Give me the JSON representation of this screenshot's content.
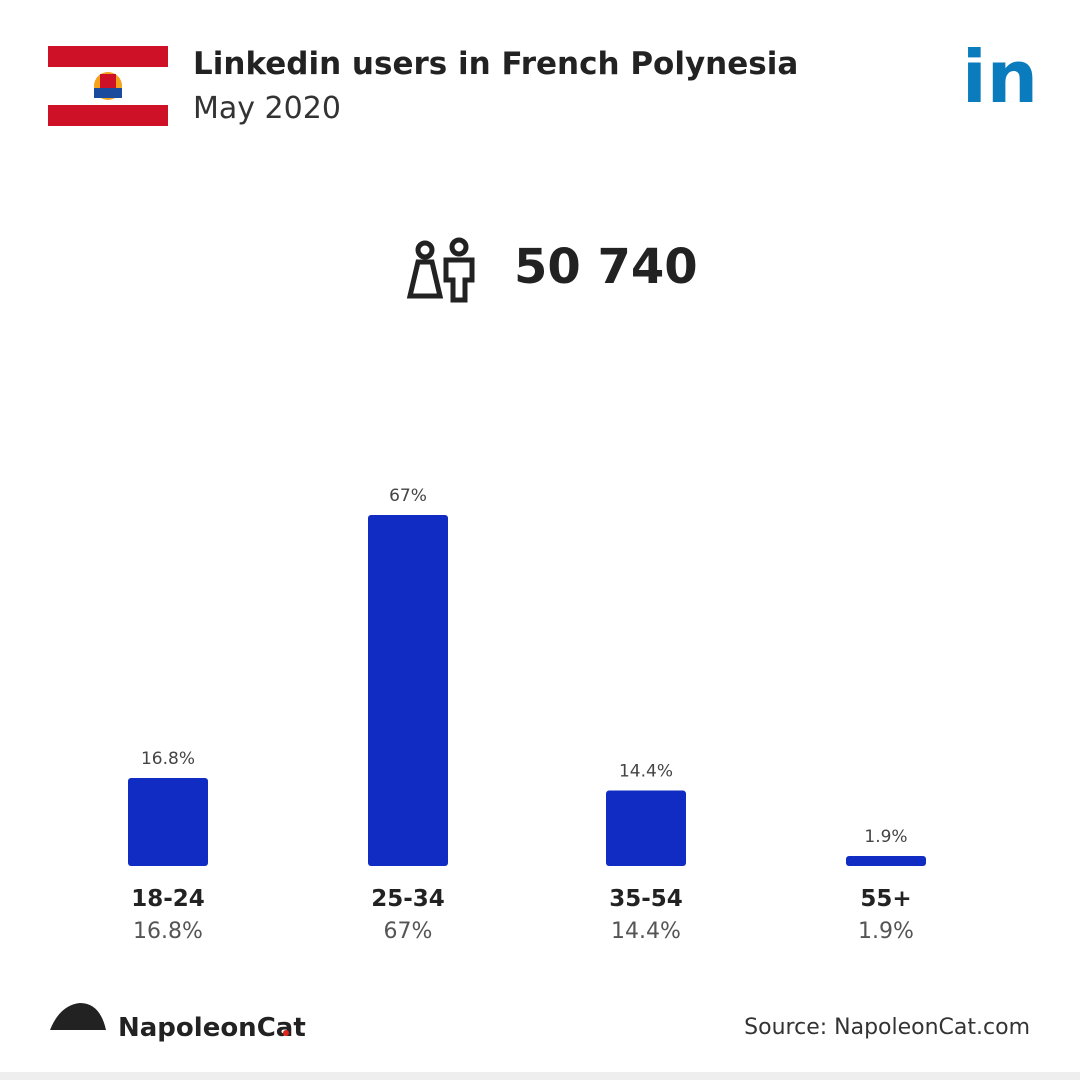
{
  "chart_data": {
    "type": "bar",
    "title": "Linkedin users in French Polynesia",
    "subtitle": "May 2020",
    "total": "50 740",
    "logo_text": "in",
    "categories": [
      "18-24",
      "25-34",
      "35-54",
      "55+"
    ],
    "values": [
      16.8,
      67,
      14.4,
      1.9
    ],
    "value_labels": [
      "16.8%",
      "67%",
      "14.4%",
      "1.9%"
    ],
    "color": "#102cc2",
    "brand": "NapoleonCat",
    "source": "Source: NapoleonCat.com"
  }
}
